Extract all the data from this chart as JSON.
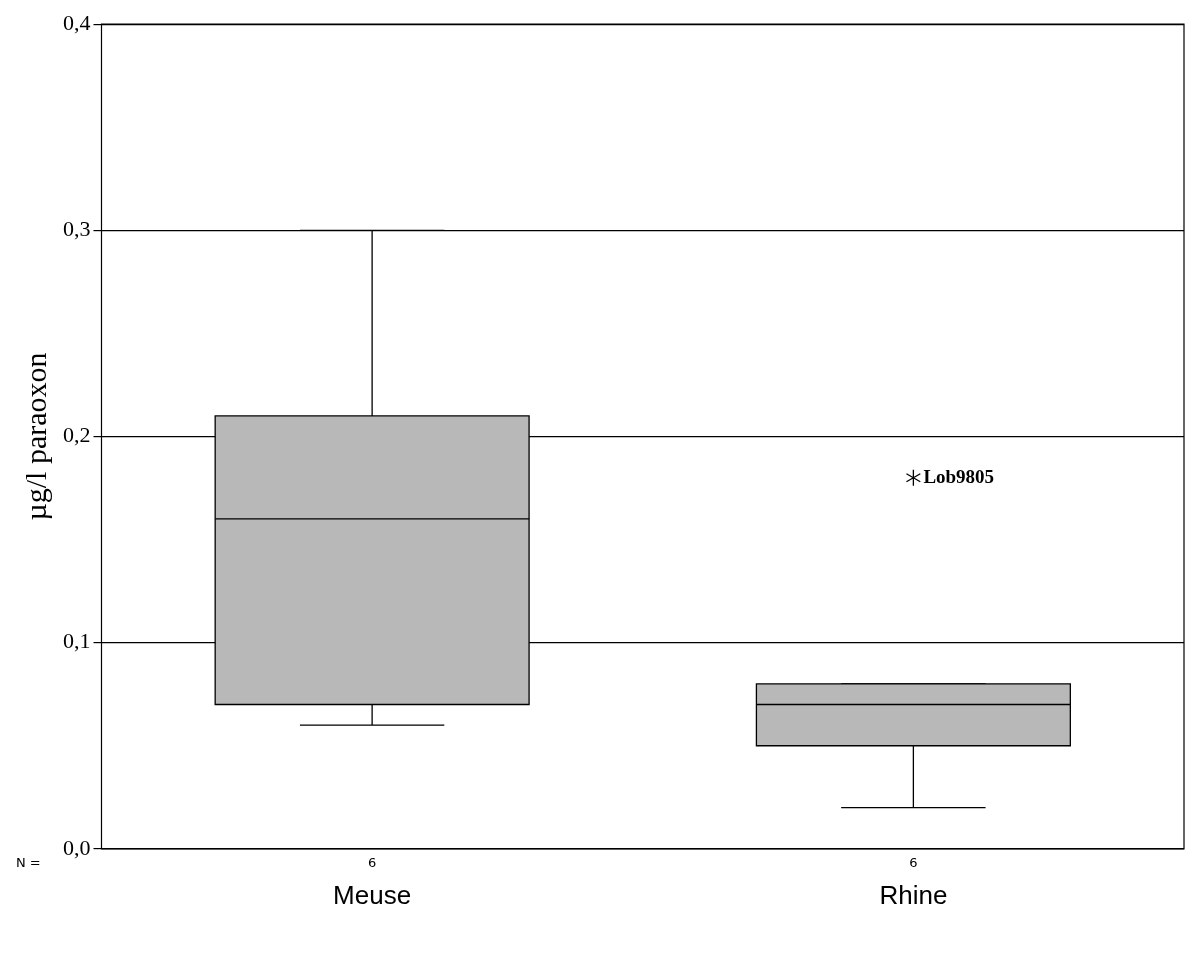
{
  "chart_data": {
    "type": "box",
    "ylabel": "µg/l paraoxon",
    "categories": [
      "Meuse",
      "Rhine"
    ],
    "boxes": [
      {
        "low": 0.06,
        "q1": 0.07,
        "median": 0.16,
        "q3": 0.21,
        "high": 0.3
      },
      {
        "low": 0.02,
        "q1": 0.05,
        "median": 0.07,
        "q3": 0.08,
        "high": 0.08,
        "outliers": [
          0.18
        ]
      }
    ],
    "color": "#b8b8b8",
    "ylim": [
      0,
      0.4
    ],
    "yticks": [
      {
        "value": 0,
        "label": "0,0"
      },
      {
        "value": 0.1,
        "label": "0,1"
      },
      {
        "value": 0.2,
        "label": "0,2"
      },
      {
        "value": 0.3,
        "label": "0,3"
      },
      {
        "value": 0.4,
        "label": "0,4"
      }
    ],
    "grid": "y",
    "legend": false,
    "marker": "star",
    "annotations": [
      "N =",
      "6",
      "6",
      "Lob9805"
    ]
  }
}
